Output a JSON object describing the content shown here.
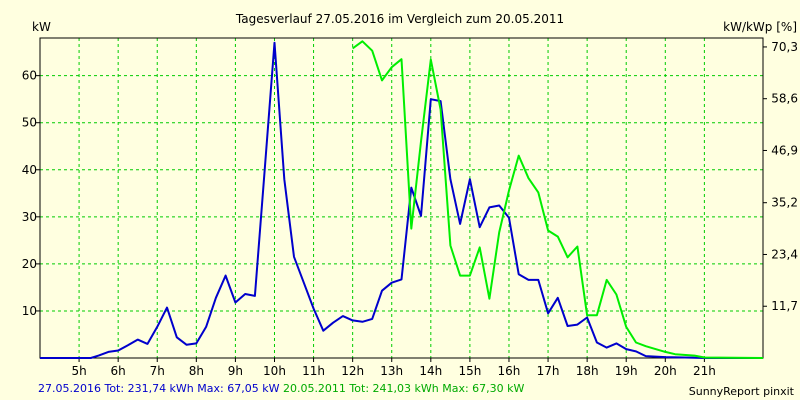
{
  "chart_data": {
    "type": "line",
    "title": "Tagesverlauf 27.05.2016 im Vergleich zum 20.05.2011",
    "ylabel_left": "kW",
    "ylabel_right": "kW/kWp [%]",
    "xlim": [
      4.0,
      22.5
    ],
    "ylim": [
      0,
      68
    ],
    "left_ticks": [
      10,
      20,
      30,
      40,
      50,
      60
    ],
    "right_ticks": [
      {
        "v": 11.0,
        "label": "11,7"
      },
      {
        "v": 22.0,
        "label": "23,4"
      },
      {
        "v": 33.0,
        "label": "35,2"
      },
      {
        "v": 44.1,
        "label": "46,9"
      },
      {
        "v": 55.1,
        "label": "58,6"
      },
      {
        "v": 66.1,
        "label": "70,3"
      }
    ],
    "x_ticks": [
      {
        "v": 5,
        "label": "5h"
      },
      {
        "v": 6,
        "label": "6h"
      },
      {
        "v": 7,
        "label": "7h"
      },
      {
        "v": 8,
        "label": "8h"
      },
      {
        "v": 9,
        "label": "9h"
      },
      {
        "v": 10,
        "label": "10h"
      },
      {
        "v": 11,
        "label": "11h"
      },
      {
        "v": 12,
        "label": "12h"
      },
      {
        "v": 13,
        "label": "13h"
      },
      {
        "v": 14,
        "label": "14h"
      },
      {
        "v": 15,
        "label": "15h"
      },
      {
        "v": 16,
        "label": "16h"
      },
      {
        "v": 17,
        "label": "17h"
      },
      {
        "v": 18,
        "label": "18h"
      },
      {
        "v": 19,
        "label": "19h"
      },
      {
        "v": 20,
        "label": "20h"
      },
      {
        "v": 21,
        "label": "21h"
      }
    ],
    "grid": true,
    "series": [
      {
        "name": "27.05.2016",
        "color": "#0000cc",
        "points": [
          [
            4.0,
            0
          ],
          [
            5.3,
            0
          ],
          [
            5.5,
            0.5
          ],
          [
            5.75,
            1.3
          ],
          [
            6.0,
            1.6
          ],
          [
            6.25,
            2.7
          ],
          [
            6.5,
            3.9
          ],
          [
            6.75,
            3.0
          ],
          [
            7.0,
            6.6
          ],
          [
            7.25,
            10.7
          ],
          [
            7.5,
            4.4
          ],
          [
            7.75,
            2.8
          ],
          [
            8.0,
            3.1
          ],
          [
            8.25,
            6.6
          ],
          [
            8.5,
            12.8
          ],
          [
            8.75,
            17.5
          ],
          [
            9.0,
            11.8
          ],
          [
            9.25,
            13.6
          ],
          [
            9.5,
            13.2
          ],
          [
            9.75,
            40.0
          ],
          [
            10.0,
            67.0
          ],
          [
            10.25,
            38.0
          ],
          [
            10.5,
            21.5
          ],
          [
            10.75,
            16.0
          ],
          [
            11.0,
            10.5
          ],
          [
            11.25,
            5.8
          ],
          [
            11.5,
            7.5
          ],
          [
            11.75,
            8.9
          ],
          [
            12.0,
            8.0
          ],
          [
            12.25,
            7.7
          ],
          [
            12.5,
            8.3
          ],
          [
            12.75,
            14.3
          ],
          [
            13.0,
            16.0
          ],
          [
            13.25,
            16.7
          ],
          [
            13.5,
            36.2
          ],
          [
            13.75,
            30.2
          ],
          [
            14.0,
            55.0
          ],
          [
            14.25,
            54.6
          ],
          [
            14.5,
            38.0
          ],
          [
            14.75,
            28.5
          ],
          [
            15.0,
            38.0
          ],
          [
            15.25,
            27.8
          ],
          [
            15.5,
            32.0
          ],
          [
            15.75,
            32.4
          ],
          [
            16.0,
            29.8
          ],
          [
            16.25,
            17.8
          ],
          [
            16.5,
            16.6
          ],
          [
            16.75,
            16.6
          ],
          [
            17.0,
            9.5
          ],
          [
            17.25,
            12.8
          ],
          [
            17.5,
            6.8
          ],
          [
            17.75,
            7.1
          ],
          [
            18.0,
            8.6
          ],
          [
            18.25,
            3.3
          ],
          [
            18.5,
            2.2
          ],
          [
            18.75,
            3.1
          ],
          [
            19.0,
            1.9
          ],
          [
            19.25,
            1.4
          ],
          [
            19.5,
            0.4
          ],
          [
            20.0,
            0.2
          ],
          [
            20.5,
            0.1
          ],
          [
            21.0,
            0
          ],
          [
            22.5,
            0
          ]
        ]
      },
      {
        "name": "20.05.2011",
        "color": "#00ee00",
        "points": [
          [
            12.0,
            65.8
          ],
          [
            12.25,
            67.3
          ],
          [
            12.5,
            65.3
          ],
          [
            12.75,
            59.0
          ],
          [
            13.0,
            61.8
          ],
          [
            13.25,
            63.5
          ],
          [
            13.5,
            27.5
          ],
          [
            13.75,
            46.0
          ],
          [
            14.0,
            63.4
          ],
          [
            14.25,
            52.8
          ],
          [
            14.5,
            23.9
          ],
          [
            14.75,
            17.5
          ],
          [
            15.0,
            17.5
          ],
          [
            15.25,
            23.5
          ],
          [
            15.5,
            12.6
          ],
          [
            15.75,
            26.7
          ],
          [
            16.0,
            35.6
          ],
          [
            16.25,
            43.0
          ],
          [
            16.5,
            38.2
          ],
          [
            16.75,
            35.2
          ],
          [
            17.0,
            27.1
          ],
          [
            17.25,
            25.8
          ],
          [
            17.5,
            21.4
          ],
          [
            17.75,
            23.7
          ],
          [
            18.0,
            9.1
          ],
          [
            18.25,
            9.1
          ],
          [
            18.5,
            16.6
          ],
          [
            18.75,
            13.5
          ],
          [
            19.0,
            6.6
          ],
          [
            19.25,
            3.3
          ],
          [
            19.5,
            2.5
          ],
          [
            19.75,
            1.9
          ],
          [
            20.0,
            1.3
          ],
          [
            20.25,
            0.8
          ],
          [
            20.75,
            0.5
          ],
          [
            21.0,
            0.1
          ],
          [
            22.5,
            0
          ]
        ]
      }
    ]
  },
  "footer": {
    "series1_text": "27.05.2016 Tot: 231,74 kWh Max: 67,05 kW",
    "series1_color": "#0000cc",
    "series2_text": " 20.05.2011 Tot: 241,03 kWh Max: 67,30 kW",
    "series2_color": "#00aa00",
    "credit": "SunnyReport pinxit"
  }
}
